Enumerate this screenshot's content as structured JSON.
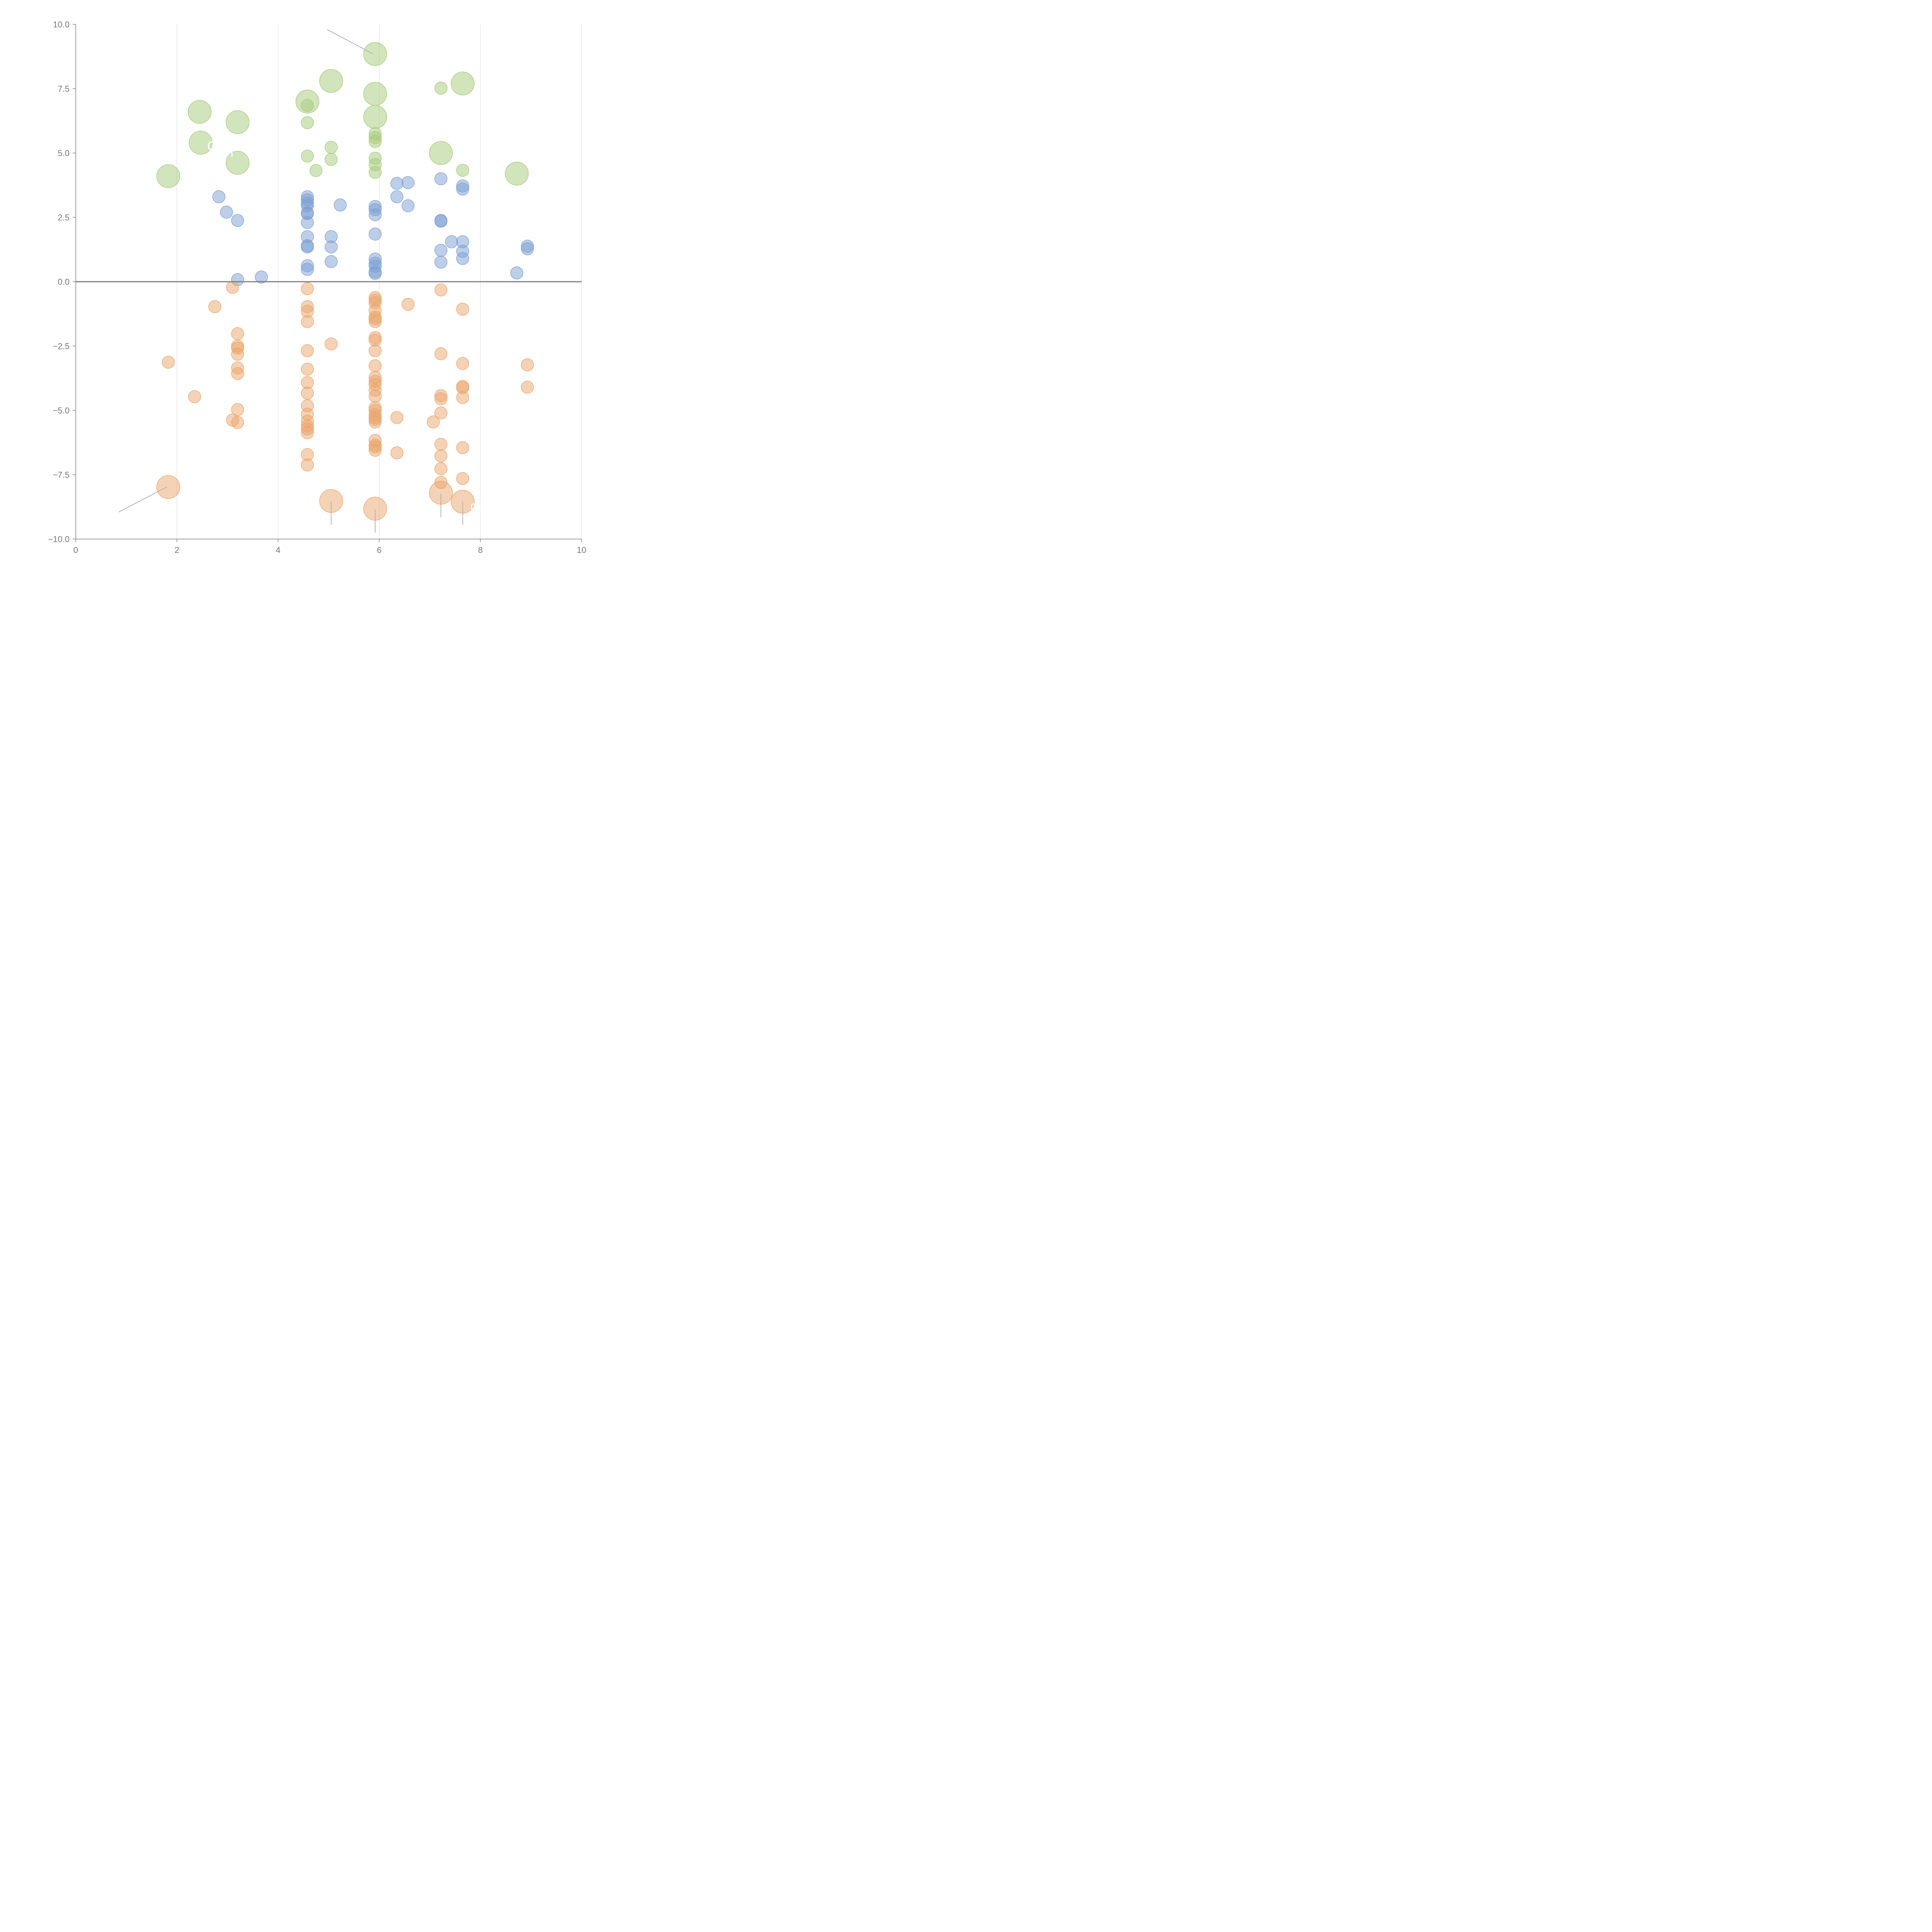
{
  "chart_data": {
    "type": "scatter",
    "subtype": "bubble",
    "title": "",
    "xlabel": "",
    "ylabel": "",
    "xlim": [
      0,
      10
    ],
    "ylim": [
      -10,
      10
    ],
    "x_ticks": [
      0,
      2,
      4,
      6,
      8,
      10
    ],
    "x_tick_labels": [
      "0",
      "2",
      "4",
      "6",
      "8",
      "10"
    ],
    "y_ticks": [
      -10,
      -7.5,
      -5,
      -2.5,
      0,
      2.5,
      5,
      7.5,
      10
    ],
    "y_tick_labels": [
      "−10.0",
      "−7.5",
      "−5.0",
      "−2.5",
      "0.0",
      "2.5",
      "5.0",
      "7.5",
      "10.0"
    ],
    "grid": "vertical",
    "zero_line": true,
    "legend": "none",
    "colors": {
      "green": "#a5c97a",
      "blue": "#7b9fd2",
      "orange": "#e9a56b",
      "grid": "#d9d9d9",
      "axis": "#808080",
      "zero_line": "#7f7f7f",
      "leader_line": "#b3b3b3"
    },
    "series": [
      {
        "name": "green",
        "color": "#a5c97a",
        "points": [
          {
            "x": 5.92,
            "y": 8.85,
            "size": "large"
          },
          {
            "x": 5.05,
            "y": 7.8,
            "size": "large"
          },
          {
            "x": 7.65,
            "y": 7.7,
            "size": "large"
          },
          {
            "x": 7.22,
            "y": 7.52,
            "size": "small"
          },
          {
            "x": 5.92,
            "y": 7.3,
            "size": "large"
          },
          {
            "x": 4.58,
            "y": 7.0,
            "size": "large"
          },
          {
            "x": 4.58,
            "y": 6.85,
            "size": "small"
          },
          {
            "x": 2.45,
            "y": 6.6,
            "size": "large"
          },
          {
            "x": 5.92,
            "y": 6.4,
            "size": "large"
          },
          {
            "x": 3.2,
            "y": 6.2,
            "size": "large"
          },
          {
            "x": 4.58,
            "y": 6.18,
            "size": "small"
          },
          {
            "x": 5.92,
            "y": 5.75,
            "size": "small"
          },
          {
            "x": 5.92,
            "y": 5.6,
            "size": "small"
          },
          {
            "x": 5.92,
            "y": 5.45,
            "size": "small"
          },
          {
            "x": 2.47,
            "y": 5.4,
            "size": "large"
          },
          {
            "x": 5.05,
            "y": 5.22,
            "size": "small"
          },
          {
            "x": 7.22,
            "y": 5.0,
            "size": "large"
          },
          {
            "x": 4.58,
            "y": 4.88,
            "size": "small"
          },
          {
            "x": 5.92,
            "y": 4.8,
            "size": "small"
          },
          {
            "x": 5.05,
            "y": 4.75,
            "size": "small"
          },
          {
            "x": 3.2,
            "y": 4.62,
            "size": "large"
          },
          {
            "x": 5.92,
            "y": 4.55,
            "size": "small"
          },
          {
            "x": 7.65,
            "y": 4.33,
            "size": "small"
          },
          {
            "x": 4.75,
            "y": 4.32,
            "size": "small"
          },
          {
            "x": 5.92,
            "y": 4.25,
            "size": "small"
          },
          {
            "x": 8.72,
            "y": 4.2,
            "size": "large"
          },
          {
            "x": 1.83,
            "y": 4.1,
            "size": "large"
          }
        ]
      },
      {
        "name": "blue",
        "color": "#7b9fd2",
        "points": [
          {
            "x": 7.22,
            "y": 4.0
          },
          {
            "x": 6.35,
            "y": 3.82
          },
          {
            "x": 6.57,
            "y": 3.85
          },
          {
            "x": 7.65,
            "y": 3.72
          },
          {
            "x": 7.65,
            "y": 3.6
          },
          {
            "x": 2.83,
            "y": 3.3
          },
          {
            "x": 6.35,
            "y": 3.3
          },
          {
            "x": 4.58,
            "y": 3.3
          },
          {
            "x": 4.58,
            "y": 3.18
          },
          {
            "x": 4.58,
            "y": 3.05
          },
          {
            "x": 4.58,
            "y": 2.95
          },
          {
            "x": 5.23,
            "y": 2.98
          },
          {
            "x": 6.57,
            "y": 2.95
          },
          {
            "x": 5.92,
            "y": 2.92
          },
          {
            "x": 5.92,
            "y": 2.8
          },
          {
            "x": 2.98,
            "y": 2.7
          },
          {
            "x": 4.58,
            "y": 2.67
          },
          {
            "x": 4.58,
            "y": 2.65
          },
          {
            "x": 5.92,
            "y": 2.6
          },
          {
            "x": 3.2,
            "y": 2.38
          },
          {
            "x": 7.22,
            "y": 2.38
          },
          {
            "x": 7.22,
            "y": 2.35
          },
          {
            "x": 4.58,
            "y": 2.3
          },
          {
            "x": 5.92,
            "y": 1.85
          },
          {
            "x": 4.58,
            "y": 1.75
          },
          {
            "x": 5.05,
            "y": 1.75
          },
          {
            "x": 7.43,
            "y": 1.55
          },
          {
            "x": 7.65,
            "y": 1.55
          },
          {
            "x": 4.58,
            "y": 1.4
          },
          {
            "x": 4.58,
            "y": 1.35
          },
          {
            "x": 5.05,
            "y": 1.35
          },
          {
            "x": 8.93,
            "y": 1.38
          },
          {
            "x": 8.93,
            "y": 1.28
          },
          {
            "x": 7.22,
            "y": 1.22
          },
          {
            "x": 7.65,
            "y": 1.18
          },
          {
            "x": 7.65,
            "y": 0.9
          },
          {
            "x": 5.92,
            "y": 0.88
          },
          {
            "x": 5.05,
            "y": 0.78
          },
          {
            "x": 7.22,
            "y": 0.76
          },
          {
            "x": 5.92,
            "y": 0.72
          },
          {
            "x": 4.58,
            "y": 0.62
          },
          {
            "x": 5.92,
            "y": 0.6
          },
          {
            "x": 4.58,
            "y": 0.48
          },
          {
            "x": 5.92,
            "y": 0.38
          },
          {
            "x": 8.72,
            "y": 0.34
          },
          {
            "x": 5.92,
            "y": 0.32
          },
          {
            "x": 3.67,
            "y": 0.18
          },
          {
            "x": 3.2,
            "y": 0.08
          }
        ]
      },
      {
        "name": "orange",
        "color": "#e9a56b",
        "points": [
          {
            "x": 3.1,
            "y": -0.22
          },
          {
            "x": 4.58,
            "y": -0.27
          },
          {
            "x": 7.22,
            "y": -0.32
          },
          {
            "x": 5.92,
            "y": -0.62
          },
          {
            "x": 5.92,
            "y": -0.72
          },
          {
            "x": 5.92,
            "y": -0.82
          },
          {
            "x": 6.57,
            "y": -0.88
          },
          {
            "x": 2.75,
            "y": -0.97
          },
          {
            "x": 4.58,
            "y": -0.97
          },
          {
            "x": 7.65,
            "y": -1.07
          },
          {
            "x": 4.58,
            "y": -1.15
          },
          {
            "x": 5.92,
            "y": -1.12
          },
          {
            "x": 5.92,
            "y": -1.37
          },
          {
            "x": 5.92,
            "y": -1.45
          },
          {
            "x": 5.92,
            "y": -1.55
          },
          {
            "x": 4.58,
            "y": -1.55
          },
          {
            "x": 3.2,
            "y": -2.02
          },
          {
            "x": 5.92,
            "y": -2.17
          },
          {
            "x": 5.92,
            "y": -2.27
          },
          {
            "x": 5.05,
            "y": -2.42
          },
          {
            "x": 3.2,
            "y": -2.5
          },
          {
            "x": 3.2,
            "y": -2.58
          },
          {
            "x": 4.58,
            "y": -2.68
          },
          {
            "x": 5.92,
            "y": -2.68
          },
          {
            "x": 3.2,
            "y": -2.82
          },
          {
            "x": 7.22,
            "y": -2.8
          },
          {
            "x": 1.83,
            "y": -3.13
          },
          {
            "x": 7.65,
            "y": -3.18
          },
          {
            "x": 8.93,
            "y": -3.23
          },
          {
            "x": 5.92,
            "y": -3.27
          },
          {
            "x": 3.2,
            "y": -3.35
          },
          {
            "x": 4.58,
            "y": -3.4
          },
          {
            "x": 3.2,
            "y": -3.57
          },
          {
            "x": 5.92,
            "y": -3.72
          },
          {
            "x": 5.92,
            "y": -3.87
          },
          {
            "x": 4.58,
            "y": -3.92
          },
          {
            "x": 5.92,
            "y": -4.0
          },
          {
            "x": 7.65,
            "y": -4.07
          },
          {
            "x": 7.65,
            "y": -4.12
          },
          {
            "x": 8.93,
            "y": -4.1
          },
          {
            "x": 5.92,
            "y": -4.22
          },
          {
            "x": 4.58,
            "y": -4.33
          },
          {
            "x": 7.22,
            "y": -4.43
          },
          {
            "x": 5.92,
            "y": -4.45
          },
          {
            "x": 2.35,
            "y": -4.47
          },
          {
            "x": 7.65,
            "y": -4.5
          },
          {
            "x": 7.22,
            "y": -4.55
          },
          {
            "x": 4.58,
            "y": -4.82
          },
          {
            "x": 5.92,
            "y": -4.9
          },
          {
            "x": 3.2,
            "y": -4.97
          },
          {
            "x": 5.92,
            "y": -5.0
          },
          {
            "x": 7.22,
            "y": -5.1
          },
          {
            "x": 4.58,
            "y": -5.15
          },
          {
            "x": 5.92,
            "y": -5.17
          },
          {
            "x": 5.92,
            "y": -5.28
          },
          {
            "x": 6.35,
            "y": -5.28
          },
          {
            "x": 3.1,
            "y": -5.38
          },
          {
            "x": 5.92,
            "y": -5.35
          },
          {
            "x": 4.58,
            "y": -5.42
          },
          {
            "x": 7.07,
            "y": -5.45
          },
          {
            "x": 3.2,
            "y": -5.47
          },
          {
            "x": 5.92,
            "y": -5.45
          },
          {
            "x": 4.58,
            "y": -5.6
          },
          {
            "x": 4.58,
            "y": -5.72
          },
          {
            "x": 4.58,
            "y": -5.87
          },
          {
            "x": 5.92,
            "y": -6.17
          },
          {
            "x": 7.22,
            "y": -6.32
          },
          {
            "x": 5.92,
            "y": -6.35
          },
          {
            "x": 5.92,
            "y": -6.42
          },
          {
            "x": 7.65,
            "y": -6.45
          },
          {
            "x": 5.92,
            "y": -6.55
          },
          {
            "x": 6.35,
            "y": -6.65
          },
          {
            "x": 4.58,
            "y": -6.72
          },
          {
            "x": 7.22,
            "y": -6.77
          },
          {
            "x": 4.58,
            "y": -7.12
          },
          {
            "x": 7.22,
            "y": -7.27
          },
          {
            "x": 7.65,
            "y": -7.65
          },
          {
            "x": 7.22,
            "y": -7.8
          },
          {
            "x": 1.83,
            "y": -7.98,
            "size": "large"
          },
          {
            "x": 7.22,
            "y": -8.2,
            "size": "large"
          },
          {
            "x": 5.05,
            "y": -8.52,
            "size": "large"
          },
          {
            "x": 7.65,
            "y": -8.55,
            "size": "large"
          },
          {
            "x": 5.92,
            "y": -8.82,
            "size": "large"
          }
        ]
      }
    ],
    "leader_lines": [
      {
        "x1": 5.88,
        "y1": 8.85,
        "x2": 4.97,
        "y2": 9.8
      },
      {
        "x1": 1.8,
        "y1": -7.98,
        "x2": 0.85,
        "y2": -8.95
      },
      {
        "x1": 5.05,
        "y1": -8.55,
        "x2": 5.05,
        "y2": -9.45
      },
      {
        "x1": 5.92,
        "y1": -8.85,
        "x2": 5.92,
        "y2": -9.75
      },
      {
        "x1": 7.22,
        "y1": -8.25,
        "x2": 7.22,
        "y2": -9.15
      },
      {
        "x1": 7.65,
        "y1": -8.55,
        "x2": 7.65,
        "y2": -9.45
      }
    ],
    "annotations": [
      {
        "text": "O",
        "x": 2.6,
        "y": 5.1
      },
      {
        "text": "l",
        "x": 3.06,
        "y": 4.85
      },
      {
        "text": "ce",
        "x": 7.8,
        "y": -8.9
      }
    ]
  }
}
